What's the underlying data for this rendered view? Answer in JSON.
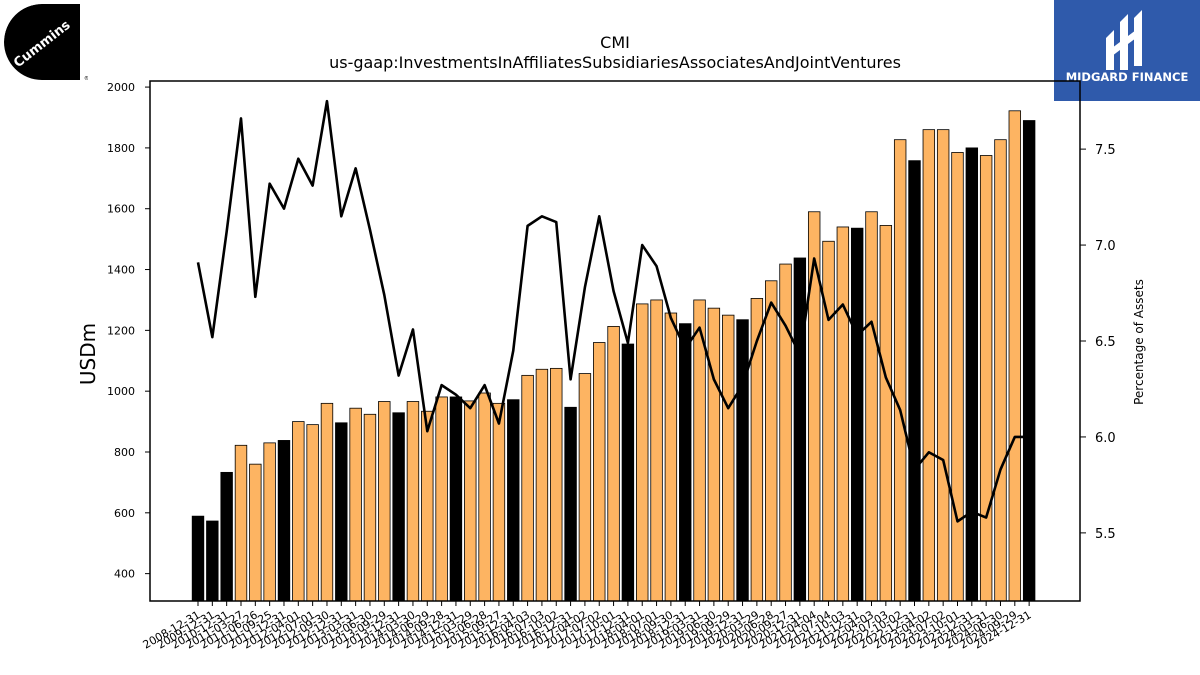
{
  "title": {
    "line1": "CMI",
    "line2": "us-gaap:InvestmentsInAffiliatesSubsidiariesAssociatesAndJointVentures"
  },
  "brand": {
    "left_logo_text": "Cummins",
    "right_logo_text": "MIDGARD FINANCE"
  },
  "colors": {
    "bar_quarter": "#fdb462",
    "bar_year_end": "#000000",
    "line": "#000000"
  },
  "chart_data": {
    "type": "bar",
    "title": "CMI",
    "subtitle": "us-gaap:InvestmentsInAffiliatesSubsidiariesAssociatesAndJointVentures",
    "ylabel": "USDm",
    "y2label": "Percentage of Assets",
    "ylim": [
      310,
      2020
    ],
    "y2lim": [
      5.145,
      7.855
    ],
    "yticks": [
      400,
      600,
      800,
      1000,
      1200,
      1400,
      1600,
      1800,
      2000
    ],
    "y2ticks": [
      5.5,
      6.0,
      6.5,
      7.0,
      7.5
    ],
    "grid": false,
    "categories": [
      "2008-12-31",
      "2009-12-31",
      "2010-12-31",
      "2011-03-27",
      "2011-06-26",
      "2011-09-25",
      "2011-12-31",
      "2012-04-01",
      "2012-07-01",
      "2012-09-30",
      "2012-12-31",
      "2013-03-31",
      "2013-06-30",
      "2013-09-29",
      "2013-12-31",
      "2014-03-30",
      "2014-06-29",
      "2014-09-28",
      "2014-12-31",
      "2015-03-29",
      "2015-06-28",
      "2015-09-27",
      "2015-12-31",
      "2016-04-03",
      "2016-07-03",
      "2016-10-02",
      "2016-12-31",
      "2017-04-02",
      "2017-07-02",
      "2017-10-01",
      "2017-12-31",
      "2018-04-01",
      "2018-07-01",
      "2018-09-30",
      "2018-12-31",
      "2019-03-31",
      "2019-06-30",
      "2019-09-29",
      "2019-12-31",
      "2020-03-29",
      "2020-06-28",
      "2020-09-27",
      "2020-12-31",
      "2021-04-04",
      "2021-07-04",
      "2021-10-03",
      "2021-12-31",
      "2022-04-03",
      "2022-07-03",
      "2022-10-02",
      "2022-12-31",
      "2023-04-02",
      "2023-07-02",
      "2023-10-01",
      "2023-12-31",
      "2024-03-31",
      "2024-06-30",
      "2024-09-29",
      "2024-12-31"
    ],
    "xtick_labels": [
      "2008-12-31",
      "2009-12-31",
      "2010-12-31",
      "2011-03-27",
      "2011-06-26",
      "2011-09-25",
      "2011-12-31",
      "2012-04-01",
      "2012-07-01",
      "2012-09-30",
      "2012-12-31",
      "2013-03-31",
      "2013-06-30",
      "2013-09-29",
      "2013-12-31",
      "2014-03-30",
      "2014-06-29",
      "2014-09-28",
      "2014-12-31",
      "2015-03-29",
      "2015-06-28",
      "2015-09-27",
      "2015-12-31",
      "2016-04-03",
      "2016-07-03",
      "2016-10-02",
      "2016-12-31",
      "2017-04-02",
      "2017-07-02",
      "2017-10-01",
      "2017-12-31",
      "2018-04-01",
      "2018-07-01",
      "2018-09-30",
      "2018-12-31",
      "2019-03-31",
      "2019-06-30",
      "2019-09-29",
      "2019-12-31",
      "2020-03-29",
      "2020-06-28",
      "2020-09-27",
      "2020-12-31",
      "2021-04-04",
      "2021-07-04",
      "2021-10-03",
      "2021-12-31",
      "2022-04-03",
      "2022-07-03",
      "2022-10-02",
      "2022-12-31",
      "2023-04-02",
      "2023-07-02",
      "2023-10-01",
      "2023-12-31",
      "2024-03-31",
      "2024-06-30",
      "2024-09-29",
      "2024-12-31"
    ],
    "series": [
      {
        "type": "bar",
        "axis": "left",
        "values": [
          589,
          573,
          733,
          822,
          760,
          830,
          838,
          900,
          890,
          960,
          896,
          944,
          924,
          966,
          929,
          966,
          934,
          981,
          981,
          968,
          994,
          960,
          972,
          1052,
          1072,
          1075,
          947,
          1058,
          1160,
          1213,
          1155,
          1287,
          1300,
          1257,
          1222,
          1300,
          1273,
          1250,
          1235,
          1305,
          1363,
          1418,
          1438,
          1590,
          1493,
          1540,
          1536,
          1590,
          1545,
          1827,
          1758,
          1860,
          1860,
          1785,
          1800,
          1775,
          1827,
          1922,
          1890
        ],
        "year_end": [
          true,
          true,
          true,
          false,
          false,
          false,
          true,
          false,
          false,
          false,
          true,
          false,
          false,
          false,
          true,
          false,
          false,
          false,
          true,
          false,
          false,
          false,
          true,
          false,
          false,
          false,
          true,
          false,
          false,
          false,
          true,
          false,
          false,
          false,
          true,
          false,
          false,
          false,
          true,
          false,
          false,
          false,
          true,
          false,
          false,
          false,
          true,
          false,
          false,
          false,
          true,
          false,
          false,
          false,
          true,
          false,
          false,
          false,
          true
        ]
      },
      {
        "type": "line",
        "axis": "right",
        "values": [
          6.91,
          6.52,
          7.07,
          7.66,
          6.73,
          7.32,
          7.19,
          7.45,
          7.31,
          7.75,
          7.15,
          7.4,
          7.08,
          6.74,
          6.32,
          6.56,
          6.03,
          6.27,
          6.22,
          6.15,
          6.27,
          6.07,
          6.45,
          7.1,
          7.15,
          7.12,
          6.3,
          6.78,
          7.15,
          6.76,
          6.49,
          7.0,
          6.89,
          6.62,
          6.46,
          6.57,
          6.3,
          6.15,
          6.27,
          6.5,
          6.7,
          6.58,
          6.43,
          6.93,
          6.61,
          6.69,
          6.53,
          6.6,
          6.31,
          6.14,
          5.83,
          5.92,
          5.88,
          5.56,
          5.61,
          5.58,
          5.83,
          6.0,
          6.0
        ]
      }
    ]
  }
}
